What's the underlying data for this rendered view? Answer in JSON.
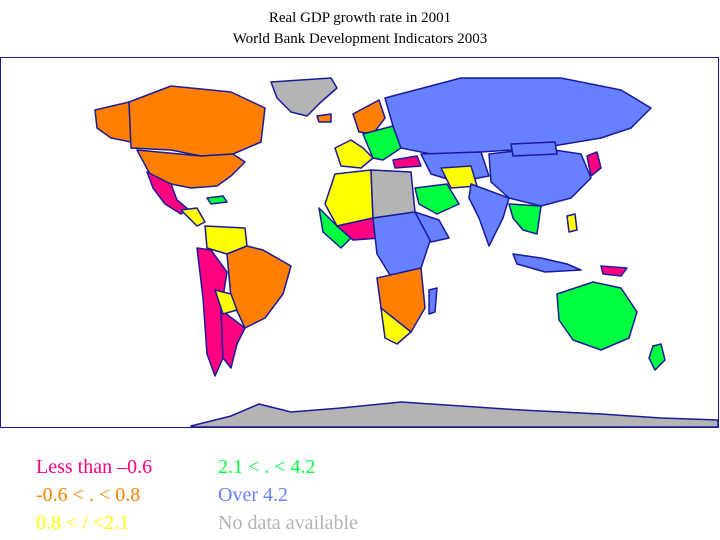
{
  "title": {
    "line1": "Real GDP growth rate in 2001",
    "line2": "World Bank Development Indicators 2003"
  },
  "legend": [
    {
      "label": "Less than –0.6",
      "color": "#ff0080"
    },
    {
      "label": "-0.6 < . < 0.8",
      "color": "#ff8000"
    },
    {
      "label": "0.8 < / <2.1",
      "color": "#ffff00"
    },
    {
      "label": "2.1 < . < 4.2",
      "color": "#00ff40"
    },
    {
      "label": "Over 4.2",
      "color": "#6680ff"
    },
    {
      "label": "No data available",
      "color": "#b4b4b4"
    }
  ],
  "map": {
    "subject": "Real GDP growth rate by country, 2001",
    "border_color": "#1a1a9a"
  }
}
